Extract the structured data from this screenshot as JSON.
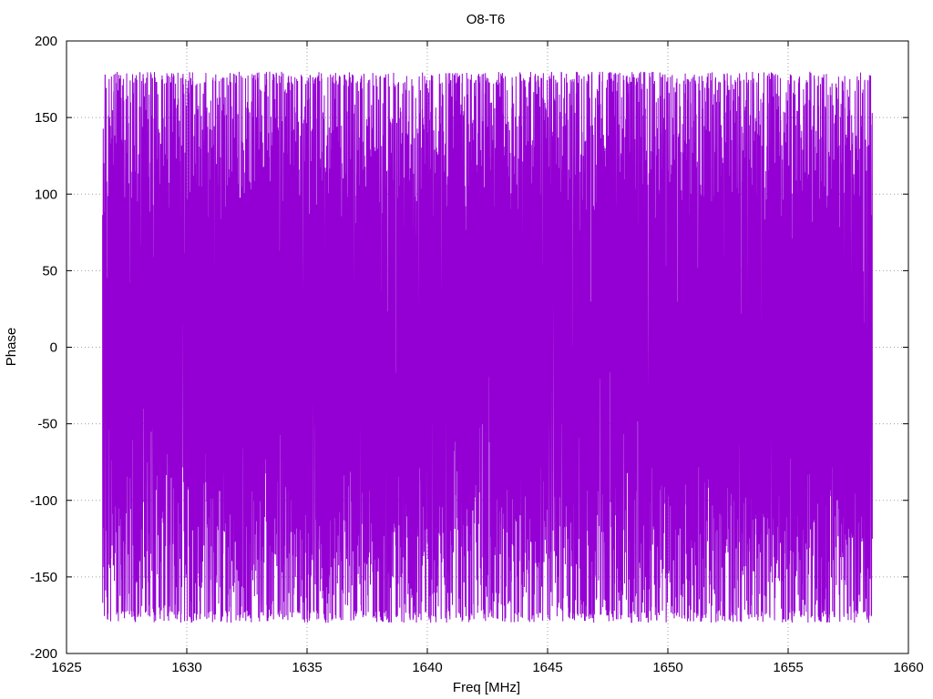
{
  "chart_data": {
    "type": "line",
    "title": "O8-T6",
    "xlabel": "Freq [MHz]",
    "ylabel": "Phase",
    "xlim": [
      1625,
      1660
    ],
    "ylim": [
      -200,
      200
    ],
    "x_ticks": [
      "1625",
      "1630",
      "1635",
      "1640",
      "1645",
      "1650",
      "1655",
      "1660"
    ],
    "y_ticks": [
      "-200",
      "-150",
      "-100",
      "-50",
      "0",
      "50",
      "100",
      "150",
      "200"
    ],
    "grid": true,
    "legend": "none",
    "series": [
      {
        "color": "#9400d3",
        "x_range": [
          1626.5,
          1658.5
        ],
        "y_range": [
          -180,
          180
        ],
        "description": "phase wraps rapidly between -180 and 180 across the whole band"
      }
    ]
  }
}
